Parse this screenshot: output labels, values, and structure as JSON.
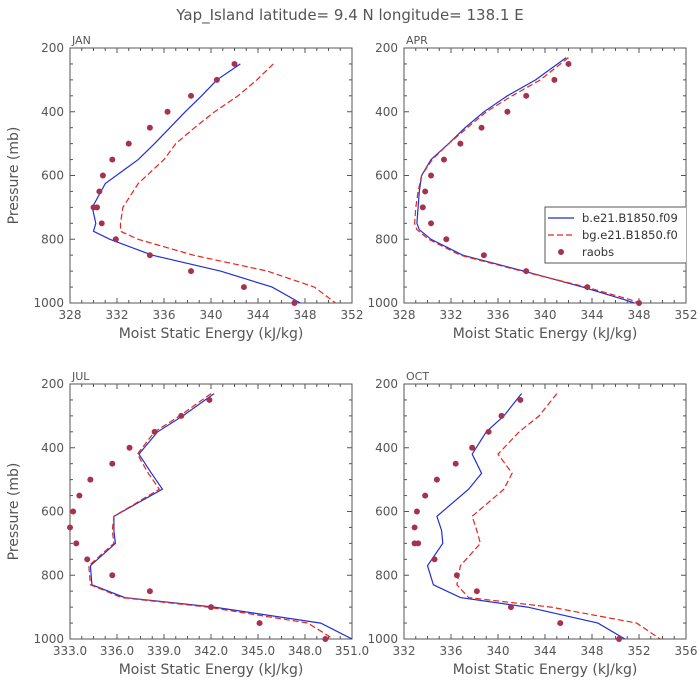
{
  "figure_title": "Yap_Island   latitude= 9.4 N longitude= 138.1 E",
  "legend": {
    "entries": [
      {
        "label": "b.e21.B1850.f09",
        "color": "#1f2fd6",
        "style": "solid"
      },
      {
        "label": "bg.e21.B1850.f0",
        "color": "#e8241c",
        "style": "dashed"
      },
      {
        "label": "raobs",
        "color": "#a5334f",
        "style": "dot"
      }
    ]
  },
  "chart_data": [
    {
      "type": "line",
      "panel_label": "JAN",
      "xlabel": "Moist Static Energy (kJ/kg)",
      "ylabel": "Pressure (mb)",
      "xlim": [
        328,
        352
      ],
      "xticks": [
        "328",
        "332",
        "336",
        "340",
        "344",
        "348",
        "352"
      ],
      "ylim": [
        1000,
        200
      ],
      "yticks": [
        "200",
        "400",
        "600",
        "800",
        "1000"
      ],
      "series": [
        {
          "name": "b.e21.B1850.f09",
          "color": "#1f2fd6",
          "style": "solid",
          "x": [
            342.5,
            340.5,
            339.2,
            337.8,
            336.5,
            335.2,
            333.8,
            331.0,
            329.9,
            330.2,
            330.0,
            331.4,
            335.0,
            340.8,
            345.2,
            347.6
          ],
          "y": [
            250,
            300,
            350,
            400,
            450,
            500,
            550,
            625,
            700,
            750,
            775,
            800,
            850,
            900,
            950,
            1000
          ]
        },
        {
          "name": "bg.e21.B1850.f0",
          "color": "#e8241c",
          "style": "dashed",
          "x": [
            345.3,
            343.9,
            342.3,
            340.3,
            338.6,
            337.0,
            336.0,
            333.8,
            332.5,
            332.3,
            332.3,
            333.8,
            338.5,
            344.8,
            348.8,
            350.6
          ],
          "y": [
            250,
            300,
            350,
            400,
            450,
            500,
            550,
            625,
            700,
            750,
            775,
            800,
            850,
            900,
            950,
            1000
          ]
        },
        {
          "name": "raobs",
          "color": "#a5334f",
          "style": "dot",
          "x": [
            342.0,
            340.5,
            338.3,
            336.3,
            334.8,
            333.0,
            331.6,
            330.8,
            330.5,
            330.3,
            330.0,
            330.7,
            331.9,
            334.8,
            338.3,
            342.8,
            347.1
          ],
          "y": [
            250,
            300,
            350,
            400,
            450,
            500,
            550,
            600,
            650,
            700,
            700,
            750,
            800,
            850,
            900,
            950,
            1000
          ]
        }
      ]
    },
    {
      "type": "line",
      "panel_label": "APR",
      "xlabel": "Moist Static Energy (kJ/kg)",
      "ylabel": "",
      "xlim": [
        328,
        352
      ],
      "xticks": [
        "328",
        "332",
        "336",
        "340",
        "344",
        "348",
        "352"
      ],
      "ylim": [
        1000,
        200
      ],
      "yticks": [
        "200",
        "400",
        "600",
        "800",
        "1000"
      ],
      "series": [
        {
          "name": "b.e21.B1850.f09",
          "color": "#1f2fd6",
          "style": "solid",
          "x": [
            341.8,
            339.2,
            336.8,
            334.8,
            333.2,
            331.8,
            330.3,
            329.5,
            329.3,
            329.2,
            329.1,
            329.3,
            330.3,
            333.0,
            338.2,
            343.2,
            346.8,
            347.6
          ],
          "y": [
            230,
            300,
            350,
            400,
            450,
            500,
            550,
            600,
            650,
            700,
            750,
            770,
            800,
            850,
            900,
            950,
            990,
            1000
          ]
        },
        {
          "name": "bg.e21.B1850.f0",
          "color": "#e8241c",
          "style": "dashed",
          "x": [
            342.0,
            339.6,
            337.2,
            335.0,
            333.4,
            331.8,
            330.4,
            329.5,
            329.2,
            329.0,
            328.9,
            329.1,
            330.1,
            332.8,
            338.0,
            343.5,
            347.3,
            348.0
          ],
          "y": [
            230,
            300,
            350,
            400,
            450,
            500,
            550,
            600,
            650,
            700,
            750,
            770,
            800,
            850,
            900,
            950,
            990,
            1000
          ]
        },
        {
          "name": "raobs",
          "color": "#a5334f",
          "style": "dot",
          "x": [
            342.0,
            340.8,
            338.4,
            336.8,
            334.6,
            332.8,
            331.4,
            330.3,
            329.8,
            329.6,
            330.3,
            331.6,
            334.8,
            338.4,
            343.6,
            348.0
          ],
          "y": [
            250,
            300,
            350,
            400,
            450,
            500,
            550,
            600,
            650,
            700,
            750,
            800,
            850,
            900,
            950,
            1000
          ]
        }
      ]
    },
    {
      "type": "line",
      "panel_label": "JUL",
      "xlabel": "Moist Static Energy (kJ/kg)",
      "ylabel": "Pressure (mb)",
      "xlim": [
        333,
        351
      ],
      "xticks": [
        "333.0",
        "336.0",
        "339.0",
        "342.0",
        "345.0",
        "348.0",
        "351.0"
      ],
      "ylim": [
        1000,
        200
      ],
      "yticks": [
        "200",
        "400",
        "600",
        "800",
        "1000"
      ],
      "series": [
        {
          "name": "b.e21.B1850.f09",
          "color": "#1f2fd6",
          "style": "solid",
          "x": [
            342.2,
            340.2,
            338.6,
            337.4,
            338.2,
            338.9,
            335.8,
            335.8,
            335.9,
            334.3,
            334.4,
            336.5,
            342.2,
            349.0,
            351.0
          ],
          "y": [
            230,
            300,
            350,
            420,
            480,
            530,
            615,
            660,
            700,
            770,
            830,
            870,
            900,
            950,
            1000
          ]
        },
        {
          "name": "bg.e21.B1850.f0",
          "color": "#e8241c",
          "style": "dashed",
          "x": [
            342.0,
            340.0,
            338.4,
            337.3,
            338.0,
            338.7,
            335.8,
            335.7,
            335.8,
            334.2,
            334.3,
            336.3,
            341.8,
            348.2,
            349.8
          ],
          "y": [
            230,
            300,
            350,
            420,
            480,
            530,
            615,
            660,
            700,
            770,
            830,
            870,
            900,
            950,
            1000
          ]
        },
        {
          "name": "raobs",
          "color": "#a5334f",
          "style": "dot",
          "x": [
            341.9,
            340.1,
            338.4,
            336.8,
            335.7,
            334.3,
            333.6,
            333.2,
            333.0,
            333.4,
            334.1,
            335.7,
            338.1,
            342.0,
            345.1,
            349.3
          ],
          "y": [
            250,
            300,
            350,
            400,
            450,
            500,
            550,
            600,
            650,
            700,
            750,
            800,
            850,
            900,
            950,
            1000
          ]
        }
      ]
    },
    {
      "type": "line",
      "panel_label": "OCT",
      "xlabel": "Moist Static Energy (kJ/kg)",
      "ylabel": "",
      "xlim": [
        332,
        356
      ],
      "xticks": [
        "332",
        "336",
        "340",
        "344",
        "348",
        "352",
        "356"
      ],
      "ylim": [
        1000,
        200
      ],
      "yticks": [
        "200",
        "400",
        "600",
        "800",
        "1000"
      ],
      "series": [
        {
          "name": "b.e21.B1850.f09",
          "color": "#1f2fd6",
          "style": "solid",
          "x": [
            342.0,
            340.5,
            339.0,
            337.8,
            338.6,
            337.5,
            334.8,
            335.2,
            335.3,
            334.0,
            334.5,
            336.8,
            342.5,
            348.5,
            350.8
          ],
          "y": [
            230,
            300,
            350,
            420,
            480,
            530,
            615,
            660,
            700,
            770,
            830,
            870,
            900,
            950,
            1000
          ]
        },
        {
          "name": "bg.e21.B1850.f0",
          "color": "#e8241c",
          "style": "dashed",
          "x": [
            345.0,
            343.5,
            341.8,
            340.0,
            341.2,
            340.5,
            337.8,
            338.2,
            338.5,
            336.8,
            336.5,
            337.5,
            344.5,
            351.8,
            353.8
          ],
          "y": [
            230,
            300,
            350,
            420,
            480,
            530,
            615,
            660,
            700,
            770,
            830,
            870,
            900,
            950,
            1000
          ]
        },
        {
          "name": "raobs",
          "color": "#a5334f",
          "style": "dot",
          "x": [
            341.9,
            340.3,
            339.2,
            337.8,
            336.4,
            334.8,
            333.8,
            333.1,
            332.9,
            332.9,
            333.2,
            334.6,
            336.5,
            338.2,
            341.1,
            345.3,
            350.3
          ],
          "y": [
            250,
            300,
            350,
            400,
            450,
            500,
            550,
            600,
            650,
            700,
            700,
            750,
            800,
            850,
            900,
            950,
            1000
          ]
        }
      ]
    }
  ]
}
